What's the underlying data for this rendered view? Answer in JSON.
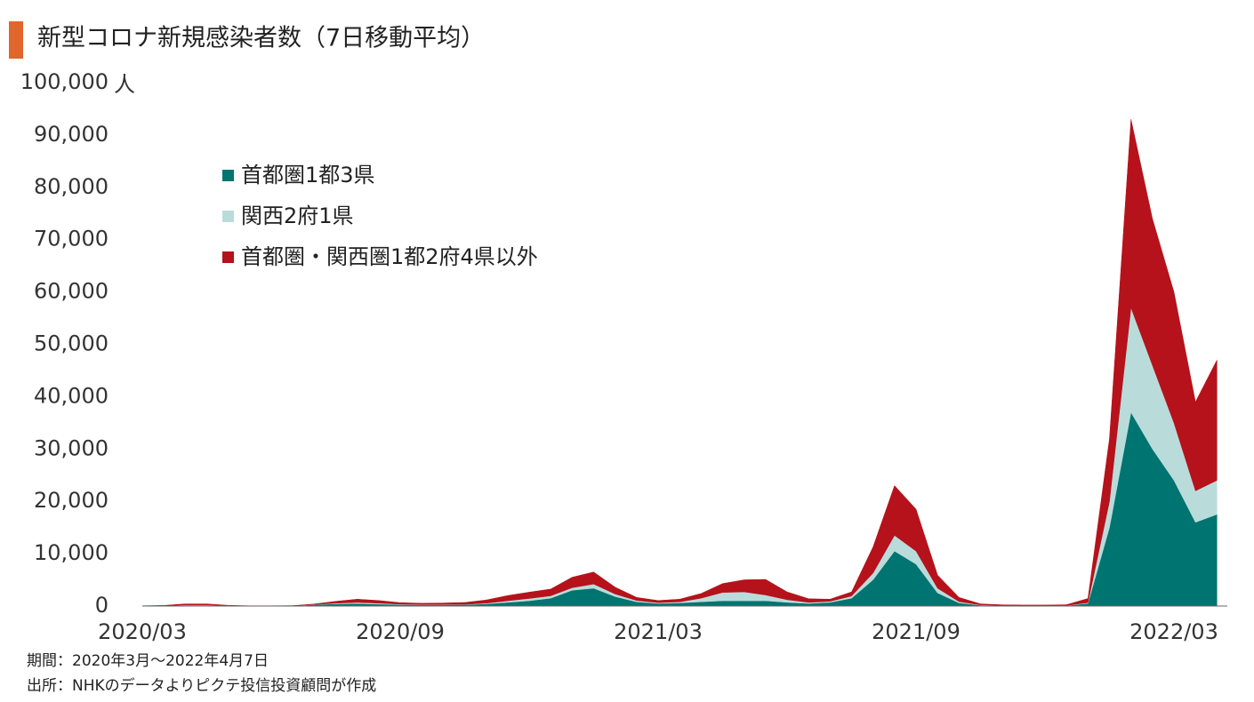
{
  "chart_data": {
    "type": "stacked-area",
    "title": "新型コロナ新規感染者数（7日移動平均）",
    "y_unit": "人",
    "notes": [
      "期間：2020年3月～2022年4月7日",
      "出所：NHKのデータよりピクテ投信投資顧問が作成"
    ],
    "categories": [
      "2020/03",
      null,
      null,
      null,
      null,
      null,
      null,
      null,
      null,
      null,
      null,
      null,
      "2020/09",
      null,
      null,
      null,
      null,
      null,
      null,
      null,
      null,
      null,
      null,
      null,
      "2021/03",
      null,
      null,
      null,
      null,
      null,
      null,
      null,
      null,
      null,
      null,
      null,
      "2021/09",
      null,
      null,
      null,
      null,
      null,
      null,
      null,
      null,
      null,
      null,
      null,
      "2022/03",
      null,
      null
    ],
    "series": [
      {
        "name": "首都圏1都3県",
        "color": "#007470",
        "values": [
          20,
          40,
          150,
          150,
          50,
          20,
          30,
          50,
          250,
          400,
          450,
          350,
          250,
          200,
          200,
          250,
          400,
          700,
          1000,
          1500,
          3000,
          3400,
          1800,
          800,
          500,
          600,
          800,
          1000,
          1000,
          1000,
          700,
          500,
          700,
          1500,
          5000,
          10500,
          8000,
          2500,
          600,
          150,
          80,
          60,
          60,
          80,
          500,
          15000,
          37000,
          30000,
          24000,
          16000,
          17500
        ]
      },
      {
        "name": "関西2府1県",
        "color": "#b9dcdb",
        "values": [
          5,
          15,
          60,
          60,
          20,
          5,
          5,
          5,
          40,
          150,
          250,
          200,
          100,
          80,
          80,
          80,
          150,
          300,
          450,
          450,
          500,
          800,
          500,
          250,
          150,
          200,
          700,
          1600,
          1700,
          1100,
          500,
          200,
          200,
          400,
          1300,
          3000,
          2500,
          900,
          250,
          60,
          30,
          20,
          20,
          30,
          150,
          5000,
          20000,
          16000,
          11000,
          6000,
          6500
        ]
      },
      {
        "name": "首都圏・関西圏1都2府4県以外",
        "color": "#b5121b",
        "values": [
          30,
          60,
          200,
          200,
          60,
          20,
          20,
          20,
          100,
          350,
          600,
          500,
          300,
          250,
          300,
          350,
          600,
          1000,
          1200,
          1300,
          2000,
          2300,
          1300,
          600,
          400,
          500,
          900,
          1700,
          2300,
          3000,
          1500,
          700,
          400,
          800,
          5000,
          9500,
          8000,
          2500,
          800,
          200,
          120,
          100,
          100,
          150,
          800,
          12000,
          36000,
          28000,
          25000,
          17000,
          23000
        ]
      }
    ],
    "ylim": [
      0,
      100000
    ],
    "yticks": [
      0,
      {
        "value": 10000,
        "label": "10,000"
      },
      {
        "value": 20000,
        "label": "20,000"
      },
      {
        "value": 30000,
        "label": "30,000"
      },
      {
        "value": 40000,
        "label": "40,000"
      },
      {
        "value": 50000,
        "label": "50,000"
      },
      {
        "value": 60000,
        "label": "60,000"
      },
      {
        "value": 70000,
        "label": "70,000"
      },
      {
        "value": 80000,
        "label": "80,000"
      },
      {
        "value": 90000,
        "label": "90,000"
      },
      {
        "value": 100000,
        "label": "100,000"
      }
    ],
    "grid": false,
    "legend": "top-left"
  }
}
